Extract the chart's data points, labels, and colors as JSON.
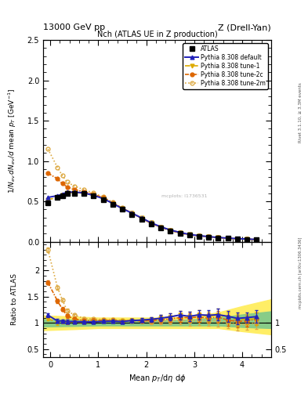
{
  "title_top": "13000 GeV pp",
  "title_right": "Z (Drell-Yan)",
  "plot_title": "Nch (ATLAS UE in Z production)",
  "ylabel_main": "1/N_{ev} dN_{ev}/d mean p_{T} [GeV]",
  "ylabel_ratio": "Ratio to ATLAS",
  "xlabel": "Mean p_{T}/d\\eta d\\phi",
  "right_label": "Rivet 3.1.10, ≥ 3.3M events",
  "url_label": "mcplots.cern.ch [arXiv:1306.3436]",
  "ylim_main": [
    0.0,
    2.5
  ],
  "xlim": [
    -0.15,
    4.6
  ],
  "atlas_x": [
    -0.05,
    0.15,
    0.25,
    0.35,
    0.5,
    0.7,
    0.9,
    1.1,
    1.3,
    1.5,
    1.7,
    1.9,
    2.1,
    2.3,
    2.5,
    2.7,
    2.9,
    3.1,
    3.3,
    3.5,
    3.7,
    3.9,
    4.1,
    4.3
  ],
  "atlas_y": [
    0.48,
    0.55,
    0.57,
    0.6,
    0.6,
    0.595,
    0.565,
    0.52,
    0.46,
    0.4,
    0.34,
    0.28,
    0.22,
    0.17,
    0.13,
    0.1,
    0.08,
    0.065,
    0.055,
    0.045,
    0.04,
    0.035,
    0.03,
    0.025
  ],
  "atlas_yerr": [
    0.02,
    0.02,
    0.02,
    0.02,
    0.015,
    0.015,
    0.015,
    0.015,
    0.015,
    0.012,
    0.012,
    0.01,
    0.01,
    0.01,
    0.008,
    0.008,
    0.007,
    0.006,
    0.005,
    0.005,
    0.004,
    0.004,
    0.003,
    0.003
  ],
  "pythia_default_x": [
    -0.05,
    0.15,
    0.25,
    0.35,
    0.5,
    0.7,
    0.9,
    1.1,
    1.3,
    1.5,
    1.7,
    1.9,
    2.1,
    2.3,
    2.5,
    2.7,
    2.9,
    3.1,
    3.3,
    3.5,
    3.7,
    3.9,
    4.1,
    4.3
  ],
  "pythia_default_y": [
    0.55,
    0.57,
    0.59,
    0.615,
    0.615,
    0.605,
    0.575,
    0.535,
    0.475,
    0.41,
    0.355,
    0.295,
    0.235,
    0.185,
    0.145,
    0.115,
    0.09,
    0.075,
    0.063,
    0.052,
    0.045,
    0.038,
    0.033,
    0.028
  ],
  "pythia_tune1_x": [
    -0.05,
    0.15,
    0.25,
    0.35,
    0.5,
    0.7,
    0.9,
    1.1,
    1.3,
    1.5,
    1.7,
    1.9,
    2.1,
    2.3,
    2.5,
    2.7,
    2.9,
    3.1,
    3.3,
    3.5,
    3.7,
    3.9,
    4.1,
    4.3
  ],
  "pythia_tune1_y": [
    0.52,
    0.55,
    0.58,
    0.605,
    0.61,
    0.6,
    0.575,
    0.535,
    0.475,
    0.415,
    0.355,
    0.295,
    0.235,
    0.185,
    0.145,
    0.115,
    0.09,
    0.075,
    0.062,
    0.052,
    0.044,
    0.037,
    0.032,
    0.027
  ],
  "pythia_tune2c_x": [
    -0.05,
    0.15,
    0.25,
    0.35,
    0.5,
    0.7,
    0.9,
    1.1,
    1.3,
    1.5,
    1.7,
    1.9,
    2.1,
    2.3,
    2.5,
    2.7,
    2.9,
    3.1,
    3.3,
    3.5,
    3.7,
    3.9,
    4.1,
    4.3
  ],
  "pythia_tune2c_y": [
    0.85,
    0.78,
    0.72,
    0.68,
    0.645,
    0.62,
    0.59,
    0.545,
    0.48,
    0.415,
    0.355,
    0.29,
    0.23,
    0.18,
    0.14,
    0.11,
    0.088,
    0.072,
    0.06,
    0.05,
    0.042,
    0.036,
    0.031,
    0.027
  ],
  "pythia_tune2m_x": [
    -0.05,
    0.15,
    0.25,
    0.35,
    0.5,
    0.7,
    0.9,
    1.1,
    1.3,
    1.5,
    1.7,
    1.9,
    2.1,
    2.3,
    2.5,
    2.7,
    2.9,
    3.1,
    3.3,
    3.5,
    3.7,
    3.9,
    4.1,
    4.3
  ],
  "pythia_tune2m_y": [
    1.15,
    0.92,
    0.82,
    0.74,
    0.69,
    0.645,
    0.605,
    0.555,
    0.49,
    0.42,
    0.355,
    0.29,
    0.225,
    0.175,
    0.135,
    0.105,
    0.083,
    0.068,
    0.057,
    0.047,
    0.04,
    0.034,
    0.029,
    0.025
  ],
  "color_default": "#2222bb",
  "color_tune1": "#ddaa00",
  "color_tune2c": "#dd6600",
  "color_tune2m": "#ddaa44",
  "band_green_x": [
    -0.15,
    0.5,
    1.0,
    1.5,
    2.0,
    2.5,
    3.0,
    3.5,
    4.0,
    4.6
  ],
  "band_green_lo": [
    0.93,
    0.94,
    0.95,
    0.95,
    0.95,
    0.95,
    0.95,
    0.95,
    0.92,
    0.9
  ],
  "band_green_hi": [
    1.07,
    1.06,
    1.05,
    1.05,
    1.05,
    1.05,
    1.07,
    1.1,
    1.16,
    1.22
  ],
  "band_yellow_x": [
    -0.15,
    0.5,
    1.0,
    1.5,
    2.0,
    2.5,
    3.0,
    3.5,
    4.0,
    4.6
  ],
  "band_yellow_lo": [
    0.86,
    0.88,
    0.9,
    0.9,
    0.9,
    0.9,
    0.9,
    0.9,
    0.84,
    0.78
  ],
  "band_yellow_hi": [
    1.14,
    1.12,
    1.1,
    1.1,
    1.1,
    1.1,
    1.13,
    1.2,
    1.32,
    1.45
  ]
}
